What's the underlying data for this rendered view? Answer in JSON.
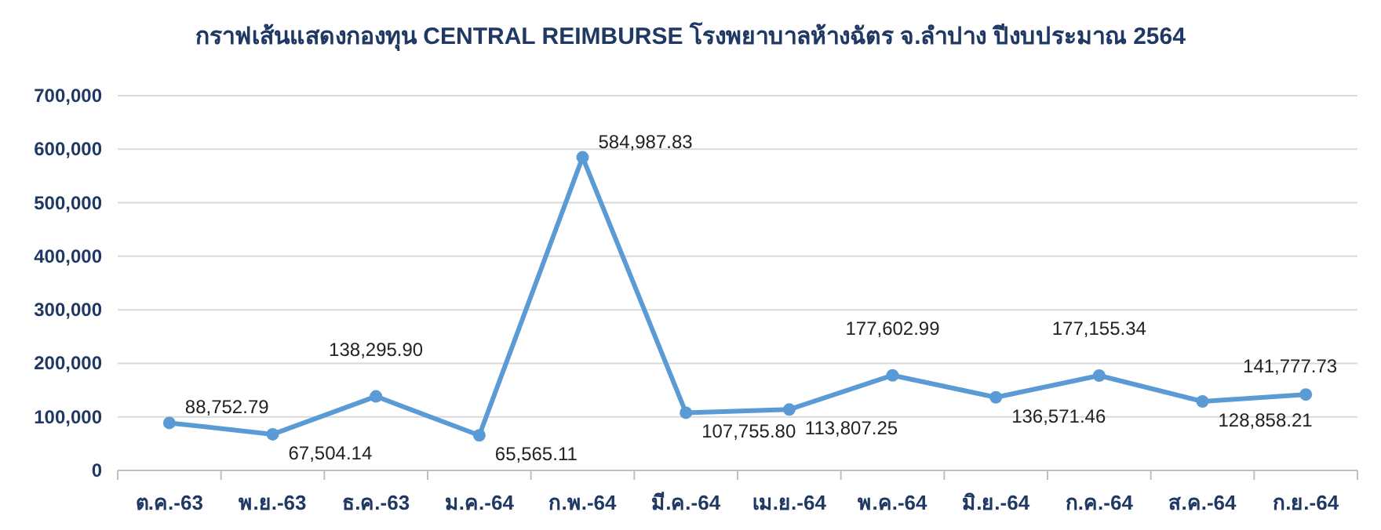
{
  "chart_data": {
    "type": "line",
    "title": "กราฟเส้นแสดงกองทุน CENTRAL REIMBURSE โรงพยาบาลห้างฉัตร จ.ลำปาง ปีงบประมาณ 2564",
    "categories": [
      "ต.ค.-63",
      "พ.ย.-63",
      "ธ.ค.-63",
      "ม.ค.-64",
      "ก.พ.-64",
      "มี.ค.-64",
      "เม.ย.-64",
      "พ.ค.-64",
      "มิ.ย.-64",
      "ก.ค.-64",
      "ส.ค.-64",
      "ก.ย.-64"
    ],
    "series": [
      {
        "color": "#5b9bd5",
        "values": [
          88752.79,
          67504.14,
          138295.9,
          65565.11,
          584987.83,
          107755.8,
          113807.25,
          177602.99,
          136571.46,
          177155.34,
          128858.21,
          141777.73
        ],
        "value_labels": [
          "88,752.79",
          "67,504.14",
          "138,295.90",
          "65,565.11",
          "584,987.83",
          "107,755.80",
          "113,807.25",
          "177,602.99",
          "136,571.46",
          "177,155.34",
          "128,858.21",
          "141,777.73"
        ]
      }
    ],
    "ylim": [
      0,
      700000
    ],
    "yticks": [
      {
        "value": 0,
        "label": "0"
      },
      {
        "value": 100000,
        "label": "100,000"
      },
      {
        "value": 200000,
        "label": "200,000"
      },
      {
        "value": 300000,
        "label": "300,000"
      },
      {
        "value": 400000,
        "label": "400,000"
      },
      {
        "value": 500000,
        "label": "500,000"
      },
      {
        "value": 600000,
        "label": "600,000"
      },
      {
        "value": 700000,
        "label": "700,000"
      }
    ],
    "grid": "y",
    "marker": "circle",
    "line_style": "solid"
  }
}
